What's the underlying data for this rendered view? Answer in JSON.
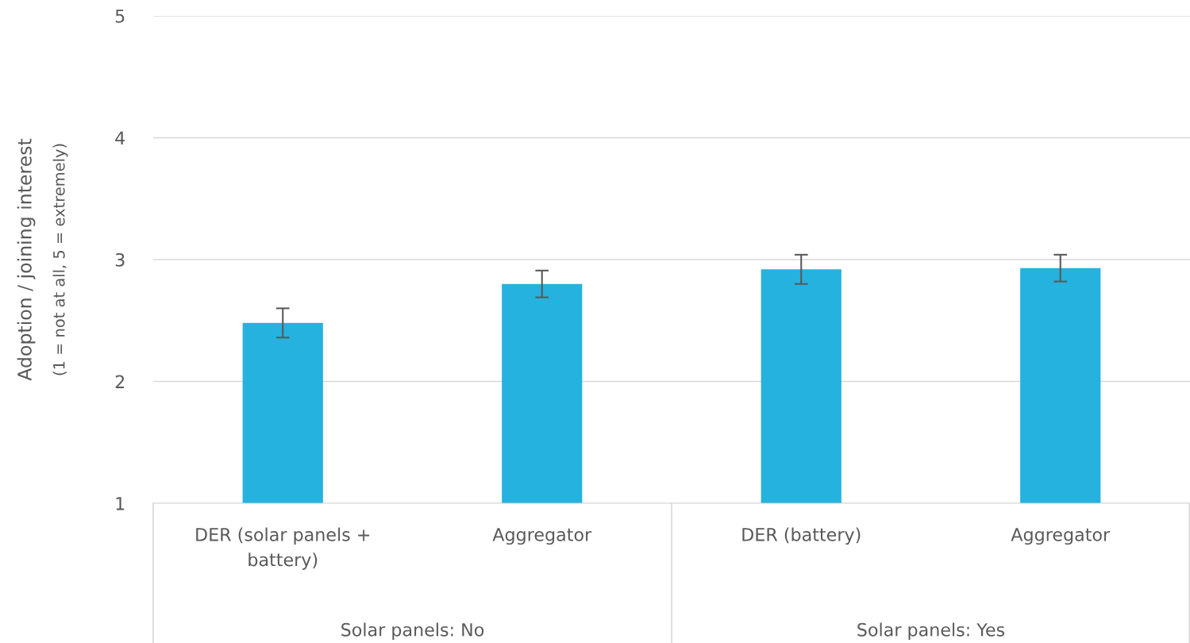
{
  "chart_data": {
    "type": "bar",
    "ylabel": "Adoption / joining interest",
    "annotations": [
      "(1 = not at all, 5 = extremely)",
      "Solar panels: No",
      "Solar panels: Yes"
    ],
    "categories": [
      "DER (solar panels +\nbattery)",
      "Aggregator",
      "DER (battery)",
      "Aggregator"
    ],
    "values": [
      2.48,
      2.8,
      2.92,
      2.93
    ],
    "errors": [
      [
        2.36,
        2.6
      ],
      [
        2.69,
        2.91
      ],
      [
        2.8,
        3.04
      ],
      [
        2.82,
        3.04
      ]
    ],
    "color": "#25b2de",
    "ylim": [
      1,
      5
    ],
    "yticks": [
      1,
      2,
      3,
      4,
      5
    ],
    "grid": "y"
  }
}
